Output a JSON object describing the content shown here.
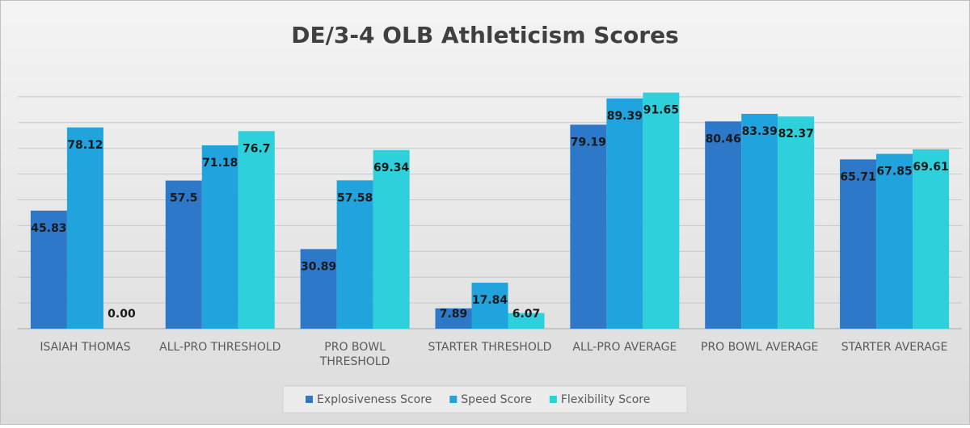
{
  "chart_data": {
    "type": "bar",
    "title": "DE/3-4 OLB Athleticism Scores",
    "categories": [
      "ISAIAH THOMAS",
      "ALL-PRO THRESHOLD",
      "PRO BOWL THRESHOLD",
      "STARTER THRESHOLD",
      "ALL-PRO AVERAGE",
      "PRO BOWL AVERAGE",
      "STARTER AVERAGE"
    ],
    "series": [
      {
        "name": "Explosiveness Score",
        "color": "#2e78c9",
        "values": [
          45.83,
          57.5,
          30.89,
          7.89,
          79.19,
          80.46,
          65.71
        ]
      },
      {
        "name": "Speed Score",
        "color": "#21a3de",
        "values": [
          78.12,
          71.18,
          57.58,
          17.84,
          89.39,
          83.39,
          67.85
        ]
      },
      {
        "name": "Flexibility Score",
        "color": "#2ed0dc",
        "values": [
          0,
          76.7,
          69.34,
          6.07,
          91.65,
          82.37,
          69.61
        ],
        "value_labels": [
          "0.00",
          "76.7",
          "69.34",
          "6.07",
          "91.65",
          "82.37",
          "69.61"
        ]
      }
    ],
    "ylim": [
      0,
      100
    ],
    "yticks": [
      0,
      10,
      20,
      30,
      40,
      50,
      60,
      70,
      80,
      90
    ],
    "grid": true,
    "legend": "bottom"
  }
}
